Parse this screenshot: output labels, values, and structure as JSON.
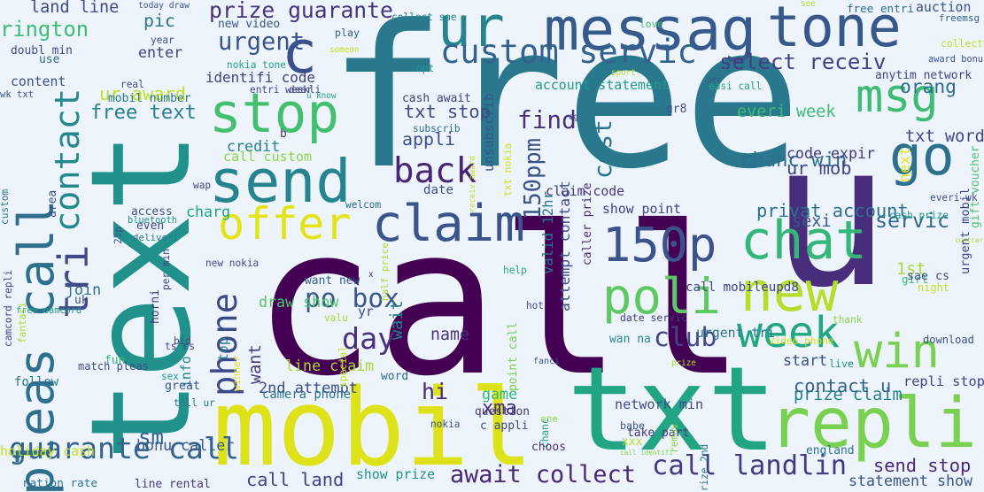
{
  "words": [
    {
      "text": "call",
      "color": "#440154"
    },
    {
      "text": "free",
      "color": "#2a788e"
    },
    {
      "text": "text",
      "color": "#21918c"
    },
    {
      "text": "u",
      "color": "#472d7b"
    },
    {
      "text": "txt",
      "color": "#21a585"
    },
    {
      "text": "mobil",
      "color": "#dde318"
    },
    {
      "text": "repli",
      "color": "#7ad151"
    },
    {
      "text": "ur",
      "color": "#25848e"
    },
    {
      "text": "messag",
      "color": "#375a8c"
    },
    {
      "text": "tone",
      "color": "#38588c"
    },
    {
      "text": "pleas call",
      "color": "#2e6f8e"
    },
    {
      "text": "stop",
      "color": "#44bf70"
    },
    {
      "text": "send",
      "color": "#25848e"
    },
    {
      "text": "c",
      "color": "#3b518b"
    },
    {
      "text": "tri",
      "color": "#3e4a89"
    },
    {
      "text": "contact",
      "color": "#23898e"
    },
    {
      "text": "custom servic",
      "color": "#33638d"
    },
    {
      "text": "msg",
      "color": "#3fbc73"
    },
    {
      "text": "go",
      "color": "#2d708e"
    },
    {
      "text": "claim",
      "color": "#3a548c"
    },
    {
      "text": "offer",
      "color": "#e2e418"
    },
    {
      "text": "chat",
      "color": "#35b779"
    },
    {
      "text": "150p",
      "color": "#3b528b"
    },
    {
      "text": "new",
      "color": "#b5de2b"
    },
    {
      "text": "poli",
      "color": "#5ec962"
    },
    {
      "text": "week",
      "color": "#22a785"
    },
    {
      "text": "win",
      "color": "#7ad151"
    },
    {
      "text": "guarante call",
      "color": "#32648e"
    },
    {
      "text": "phone",
      "color": "#3e4989"
    },
    {
      "text": "back",
      "color": "#482475"
    },
    {
      "text": "await collect",
      "color": "#482878"
    },
    {
      "text": "call landlin",
      "color": "#443a83"
    },
    {
      "text": "land line",
      "color": "#3e4a89"
    },
    {
      "text": "prize guarante",
      "color": "#46337e"
    },
    {
      "text": "rington",
      "color": "#3dbc74"
    },
    {
      "text": "pic",
      "color": "#2c738e"
    },
    {
      "text": "urgent",
      "color": "#3a548c"
    },
    {
      "text": "select receiv",
      "color": "#433e85"
    },
    {
      "text": "orang",
      "color": "#2f6c8e"
    },
    {
      "text": "free text",
      "color": "#277f8e"
    },
    {
      "text": "txt stop",
      "color": "#3e4a89"
    },
    {
      "text": "find",
      "color": "#46327e"
    },
    {
      "text": "appli",
      "color": "#3c508b"
    },
    {
      "text": "cost",
      "color": "#2a768e"
    },
    {
      "text": "150ppm",
      "color": "#3a538b"
    },
    {
      "text": "day",
      "color": "#46307e"
    },
    {
      "text": "po box",
      "color": "#38588c"
    },
    {
      "text": "club",
      "color": "#404688"
    },
    {
      "text": "servic",
      "color": "#31678e"
    },
    {
      "text": "next",
      "color": "#e7e419"
    },
    {
      "text": "txt word",
      "color": "#3f4788"
    },
    {
      "text": "urgent mobil",
      "color": "#3e4989"
    },
    {
      "text": "everi week",
      "color": "#3fbc73"
    },
    {
      "text": "chanc win",
      "color": "#2e6e8e"
    },
    {
      "text": "code expir",
      "color": "#443983"
    },
    {
      "text": "ur mob",
      "color": "#404688"
    },
    {
      "text": "privat account",
      "color": "#2d718e"
    },
    {
      "text": "sexi",
      "color": "#38598c"
    },
    {
      "text": "1st",
      "color": "#a8db34"
    },
    {
      "text": "prize claim",
      "color": "#27808e"
    },
    {
      "text": "contact u",
      "color": "#34618d"
    },
    {
      "text": "repli stop",
      "color": "#414487"
    },
    {
      "text": "send stop",
      "color": "#472a7a"
    },
    {
      "text": "statement show",
      "color": "#3a538b"
    },
    {
      "text": "call land",
      "color": "#414287"
    },
    {
      "text": "show prize",
      "color": "#20938c"
    },
    {
      "text": "xma",
      "color": "#46327e"
    },
    {
      "text": "game",
      "color": "#35b779"
    },
    {
      "text": "hi",
      "color": "#472c7a"
    },
    {
      "text": "sm",
      "color": "#32648e"
    },
    {
      "text": "bonu caller",
      "color": "#38598c"
    },
    {
      "text": "2nd attempt",
      "color": "#3e4c8a"
    },
    {
      "text": "want",
      "color": "#453882"
    },
    {
      "text": "charg",
      "color": "#1fa287"
    },
    {
      "text": "credit",
      "color": "#26828e"
    },
    {
      "text": "call custom",
      "color": "#8ed645"
    },
    {
      "text": "draw show",
      "color": "#52c569"
    },
    {
      "text": "line claim",
      "color": "#a2da37"
    },
    {
      "text": "identifi code",
      "color": "#433e85"
    },
    {
      "text": "ur award",
      "color": "#c2df23"
    },
    {
      "text": "content",
      "color": "#3b528b"
    },
    {
      "text": "account statement",
      "color": "#1f9a8a"
    },
    {
      "text": "enter",
      "color": "#424086"
    },
    {
      "text": "valid 12hr",
      "color": "#2b758e"
    },
    {
      "text": "attempt contact",
      "color": "#3d4e8a"
    },
    {
      "text": "caller prize",
      "color": "#472c7a"
    },
    {
      "text": "point call",
      "color": "#7ad151"
    },
    {
      "text": "show point",
      "color": "#414487"
    },
    {
      "text": "claim code",
      "color": "#453781"
    },
    {
      "text": "call mobileupd8",
      "color": "#404588"
    },
    {
      "text": "urgent tri",
      "color": "#2c738e"
    },
    {
      "text": "date servic",
      "color": "#443983"
    },
    {
      "text": "network min",
      "color": "#3e4c8a"
    },
    {
      "text": "call identifi",
      "color": "#86d549"
    },
    {
      "text": "name",
      "color": "#46327e"
    },
    {
      "text": "fanci",
      "color": "#39568c"
    },
    {
      "text": "hot",
      "color": "#3f4889"
    },
    {
      "text": "yr",
      "color": "#3d4d8a"
    },
    {
      "text": "half price",
      "color": "#addc30"
    },
    {
      "text": "wait",
      "color": "#287c8e"
    },
    {
      "text": "want new",
      "color": "#365c8d"
    },
    {
      "text": "join",
      "color": "#2e6f8e"
    },
    {
      "text": "uk",
      "color": "#3b528b"
    },
    {
      "text": "free camcord",
      "color": "#1fa088"
    },
    {
      "text": "camcord repli",
      "color": "#3e4989"
    },
    {
      "text": "match pleas",
      "color": "#3e4c8a"
    },
    {
      "text": "bid",
      "color": "#3f4788"
    },
    {
      "text": "ts cs",
      "color": "#433e85"
    },
    {
      "text": "info",
      "color": "#26818e"
    },
    {
      "text": "sex",
      "color": "#1f9e89"
    },
    {
      "text": "great",
      "color": "#38588c"
    },
    {
      "text": "follow",
      "color": "#2a778e"
    },
    {
      "text": "holiday cash",
      "color": "#c5e021"
    },
    {
      "text": "nation rate",
      "color": "#2c728e"
    },
    {
      "text": "line rental",
      "color": "#453781"
    },
    {
      "text": "tell ur",
      "color": "#2a788e"
    },
    {
      "text": "camera phone",
      "color": "#2b748e"
    },
    {
      "text": "winner",
      "color": "#e5e419"
    },
    {
      "text": "top",
      "color": "#287d8e"
    },
    {
      "text": "special",
      "color": "#c8e020"
    },
    {
      "text": "valu",
      "color": "#a5db36"
    },
    {
      "text": "word",
      "color": "#2f6b8e"
    },
    {
      "text": "question",
      "color": "#453781"
    },
    {
      "text": "c appli",
      "color": "#3e4a89"
    },
    {
      "text": "nokia",
      "color": "#3b528b"
    },
    {
      "text": "one",
      "color": "#95d840"
    },
    {
      "text": "chanc",
      "color": "#20a386"
    },
    {
      "text": "choos",
      "color": "#472f7d"
    },
    {
      "text": "babe",
      "color": "#3b528b"
    },
    {
      "text": "take part",
      "color": "#453882"
    },
    {
      "text": "xxx",
      "color": "#b8de29"
    },
    {
      "text": "prize 2nd",
      "color": "#2b748e"
    },
    {
      "text": "remov",
      "color": "#8bd646"
    },
    {
      "text": "england",
      "color": "#2c718e"
    },
    {
      "text": "video phone",
      "color": "#d8e219"
    },
    {
      "text": "thank",
      "color": "#8bd646"
    },
    {
      "text": "download",
      "color": "#3b528b"
    },
    {
      "text": "start",
      "color": "#3c4f8a"
    },
    {
      "text": "live",
      "color": "#21918c"
    },
    {
      "text": "wan na",
      "color": "#25848e"
    },
    {
      "text": "prize",
      "color": "#addc30"
    },
    {
      "text": "girl",
      "color": "#37b878"
    },
    {
      "text": "sae cs",
      "color": "#3b518b"
    },
    {
      "text": "night",
      "color": "#c8e020"
    },
    {
      "text": "custcar",
      "color": "#b0dd2f"
    },
    {
      "text": "cash prize",
      "color": "#1e9b8a"
    },
    {
      "text": "gift voucher",
      "color": "#50c46a"
    },
    {
      "text": "everi wk",
      "color": "#3b518b"
    },
    {
      "text": "easi call",
      "color": "#20a386"
    },
    {
      "text": "per",
      "color": "#3b528b"
    },
    {
      "text": "anytim network",
      "color": "#3f4788"
    },
    {
      "text": "award bonu",
      "color": "#3a548c"
    },
    {
      "text": "collect",
      "color": "#c2df23"
    },
    {
      "text": "freemsg",
      "color": "#33638d"
    },
    {
      "text": "free entri",
      "color": "#2f6b8e"
    },
    {
      "text": "auction",
      "color": "#3b518b"
    },
    {
      "text": "see",
      "color": "#b5de2b"
    },
    {
      "text": "gr8",
      "color": "#3d4e8a"
    },
    {
      "text": "eg",
      "color": "#3e4989"
    },
    {
      "text": "love",
      "color": "#4ac16d"
    },
    {
      "text": "collect sae",
      "color": "#25858e"
    },
    {
      "text": "today draw",
      "color": "#3b518b"
    },
    {
      "text": "new video",
      "color": "#39568c"
    },
    {
      "text": "play",
      "color": "#365d8d"
    },
    {
      "text": "someon",
      "color": "#c8e020"
    },
    {
      "text": "opt",
      "color": "#21918c"
    },
    {
      "text": "sport",
      "color": "#b0dd2f"
    },
    {
      "text": "nokia tone",
      "color": "#1f9f88"
    },
    {
      "text": "entri weekli",
      "color": "#404688"
    },
    {
      "text": "dear",
      "color": "#3f4788"
    },
    {
      "text": "u know",
      "color": "#22a785"
    },
    {
      "text": "cash await",
      "color": "#433e85"
    },
    {
      "text": "unsubscrib",
      "color": "#39558c"
    },
    {
      "text": "subscrib",
      "color": "#2f6b8e"
    },
    {
      "text": "txt nokia",
      "color": "#d2e21b"
    },
    {
      "text": "receiv award",
      "color": "#c0df25"
    },
    {
      "text": "date",
      "color": "#3e4c8a"
    },
    {
      "text": "welcom",
      "color": "#2e6e8e"
    },
    {
      "text": "help",
      "color": "#1fa287"
    },
    {
      "text": "x",
      "color": "#472c7a"
    },
    {
      "text": "real",
      "color": "#3d4d8a"
    },
    {
      "text": "b",
      "color": "#453781"
    },
    {
      "text": "wap",
      "color": "#404588"
    },
    {
      "text": "mobil number",
      "color": "#2a768e"
    },
    {
      "text": "year",
      "color": "#3b518b"
    },
    {
      "text": "doubl min",
      "color": "#3e4c8a"
    },
    {
      "text": "use",
      "color": "#2f6c8e"
    },
    {
      "text": "wk txt",
      "color": "#3b528b"
    },
    {
      "text": "custom",
      "color": "#2a788e"
    },
    {
      "text": "area",
      "color": "#3d4e8a"
    },
    {
      "text": "access",
      "color": "#3c508b"
    },
    {
      "text": "bluetooth",
      "color": "#20928c"
    },
    {
      "text": "deliveri",
      "color": "#2a788e"
    },
    {
      "text": "even",
      "color": "#3e4989"
    },
    {
      "text": "25p",
      "color": "#3b528b"
    },
    {
      "text": "per min",
      "color": "#3f4788"
    },
    {
      "text": "horni",
      "color": "#453882"
    },
    {
      "text": "new nokia",
      "color": "#3e4c8a"
    },
    {
      "text": "fantasi",
      "color": "#addc30"
    },
    {
      "text": "fun",
      "color": "#38b977"
    }
  ]
}
